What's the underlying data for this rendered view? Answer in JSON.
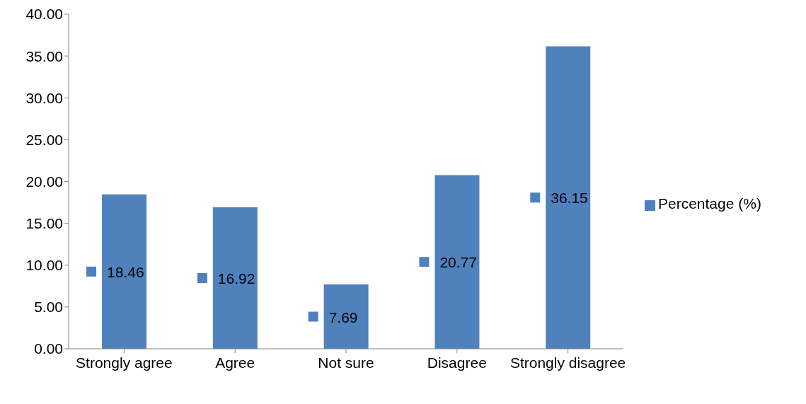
{
  "chart_data": {
    "type": "bar",
    "categories": [
      "Strongly agree",
      "Agree",
      "Not sure",
      "Disagree",
      "Strongly disagree"
    ],
    "series": [
      {
        "name": "Percentage (%)",
        "color": "#4f81bd",
        "values": [
          18.46,
          16.92,
          7.69,
          20.77,
          36.15
        ]
      }
    ],
    "ylim": [
      0,
      40
    ],
    "yticks": [
      {
        "value": 0,
        "label": "0.00"
      },
      {
        "value": 5,
        "label": "5.00"
      },
      {
        "value": 10,
        "label": "10.00"
      },
      {
        "value": 15,
        "label": "15.00"
      },
      {
        "value": 20,
        "label": "20.00"
      },
      {
        "value": 25,
        "label": "25.00"
      },
      {
        "value": 30,
        "label": "30.00"
      },
      {
        "value": 35,
        "label": "35.00"
      },
      {
        "value": 40,
        "label": "40.00"
      }
    ],
    "grid": false,
    "legend": "right",
    "data_labels": true
  }
}
